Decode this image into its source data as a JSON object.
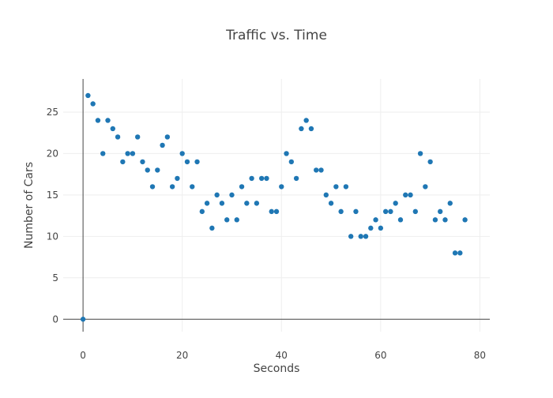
{
  "chart_data": {
    "type": "scatter",
    "title": "Traffic vs. Time",
    "xlabel": "Seconds",
    "ylabel": "Number of Cars",
    "xlim": [
      -4,
      82
    ],
    "ylim": [
      -1.5,
      29
    ],
    "xticks": [
      0,
      20,
      40,
      60,
      80
    ],
    "yticks": [
      0,
      5,
      10,
      15,
      20,
      25
    ],
    "grid": true,
    "legend": "none",
    "marker_color": "#1f77b4",
    "x": [
      0,
      1,
      2,
      3,
      4,
      5,
      6,
      7,
      8,
      9,
      10,
      11,
      12,
      13,
      14,
      15,
      16,
      17,
      18,
      19,
      20,
      21,
      22,
      23,
      24,
      25,
      26,
      27,
      28,
      29,
      30,
      31,
      32,
      33,
      34,
      35,
      36,
      37,
      38,
      39,
      40,
      41,
      42,
      43,
      44,
      45,
      46,
      47,
      48,
      49,
      50,
      51,
      52,
      53,
      54,
      55,
      56,
      57,
      58,
      59,
      60,
      61,
      62,
      63,
      64,
      65,
      66,
      67,
      68,
      69,
      70,
      71,
      72,
      73,
      74,
      75,
      76,
      77
    ],
    "y": [
      0,
      27,
      26,
      24,
      20,
      24,
      23,
      22,
      19,
      20,
      20,
      22,
      19,
      18,
      16,
      18,
      21,
      22,
      16,
      17,
      20,
      19,
      16,
      19,
      13,
      14,
      11,
      15,
      14,
      12,
      15,
      12,
      16,
      14,
      17,
      14,
      17,
      17,
      13,
      13,
      16,
      20,
      19,
      17,
      23,
      24,
      23,
      18,
      18,
      15,
      14,
      16,
      13,
      16,
      10,
      13,
      10,
      10,
      11,
      12,
      11,
      13,
      13,
      14,
      12,
      15,
      15,
      13,
      20,
      16,
      19,
      12,
      13,
      12,
      14,
      8,
      8,
      12
    ]
  }
}
